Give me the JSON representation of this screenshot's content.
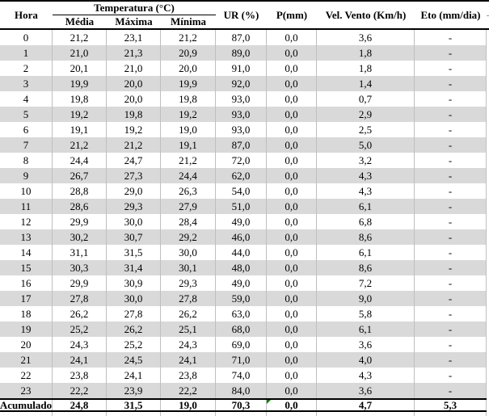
{
  "table": {
    "columns": {
      "hora": "Hora",
      "temperatura_group": "Temperatura (°C)",
      "media": "Média",
      "maxima": "Máxima",
      "minima": "Mínima",
      "ur": "UR (%)",
      "p": "P(mm)",
      "vento": "Vel. Vento (Km/h)",
      "eto": "Eto (mm/dia)"
    },
    "rows": [
      [
        "0",
        "21,2",
        "23,1",
        "21,2",
        "87,0",
        "0,0",
        "3,6",
        "-"
      ],
      [
        "1",
        "21,0",
        "21,3",
        "20,9",
        "89,0",
        "0,0",
        "1,8",
        "-"
      ],
      [
        "2",
        "20,1",
        "21,0",
        "20,0",
        "91,0",
        "0,0",
        "1,8",
        "-"
      ],
      [
        "3",
        "19,9",
        "20,0",
        "19,9",
        "92,0",
        "0,0",
        "1,4",
        "-"
      ],
      [
        "4",
        "19,8",
        "20,0",
        "19,8",
        "93,0",
        "0,0",
        "0,7",
        "-"
      ],
      [
        "5",
        "19,2",
        "19,8",
        "19,2",
        "93,0",
        "0,0",
        "2,9",
        "-"
      ],
      [
        "6",
        "19,1",
        "19,2",
        "19,0",
        "93,0",
        "0,0",
        "2,5",
        "-"
      ],
      [
        "7",
        "21,2",
        "21,2",
        "19,1",
        "87,0",
        "0,0",
        "5,0",
        "-"
      ],
      [
        "8",
        "24,4",
        "24,7",
        "21,2",
        "72,0",
        "0,0",
        "3,2",
        "-"
      ],
      [
        "9",
        "26,7",
        "27,3",
        "24,4",
        "62,0",
        "0,0",
        "4,3",
        "-"
      ],
      [
        "10",
        "28,8",
        "29,0",
        "26,3",
        "54,0",
        "0,0",
        "4,3",
        "-"
      ],
      [
        "11",
        "28,6",
        "29,3",
        "27,9",
        "51,0",
        "0,0",
        "6,1",
        "-"
      ],
      [
        "12",
        "29,9",
        "30,0",
        "28,4",
        "49,0",
        "0,0",
        "6,8",
        "-"
      ],
      [
        "13",
        "30,2",
        "30,7",
        "29,2",
        "46,0",
        "0,0",
        "8,6",
        "-"
      ],
      [
        "14",
        "31,1",
        "31,5",
        "30,0",
        "44,0",
        "0,0",
        "6,1",
        "-"
      ],
      [
        "15",
        "30,3",
        "31,4",
        "30,1",
        "48,0",
        "0,0",
        "8,6",
        "-"
      ],
      [
        "16",
        "29,9",
        "30,9",
        "29,3",
        "49,0",
        "0,0",
        "7,2",
        "-"
      ],
      [
        "17",
        "27,8",
        "30,0",
        "27,8",
        "59,0",
        "0,0",
        "9,0",
        "-"
      ],
      [
        "18",
        "26,2",
        "27,8",
        "26,2",
        "63,0",
        "0,0",
        "5,8",
        "-"
      ],
      [
        "19",
        "25,2",
        "26,2",
        "25,1",
        "68,0",
        "0,0",
        "6,1",
        "-"
      ],
      [
        "20",
        "24,3",
        "25,2",
        "24,3",
        "69,0",
        "0,0",
        "3,6",
        "-"
      ],
      [
        "21",
        "24,1",
        "24,5",
        "24,1",
        "71,0",
        "0,0",
        "4,0",
        "-"
      ],
      [
        "22",
        "23,8",
        "24,1",
        "23,8",
        "74,0",
        "0,0",
        "4,3",
        "-"
      ],
      [
        "23",
        "22,2",
        "23,9",
        "22,2",
        "84,0",
        "0,0",
        "3,6",
        "-"
      ]
    ],
    "accumulated": {
      "cells": [
        "Acumulado",
        "24,8",
        "31,5",
        "19,0",
        "70,3",
        "0,0",
        "4,7",
        "5,3"
      ]
    },
    "colors": {
      "row_alt": "#D9D9D9",
      "grid_line": "#BFBFBF",
      "rule_line": "#000000",
      "note_marker_green": "#008000"
    }
  }
}
